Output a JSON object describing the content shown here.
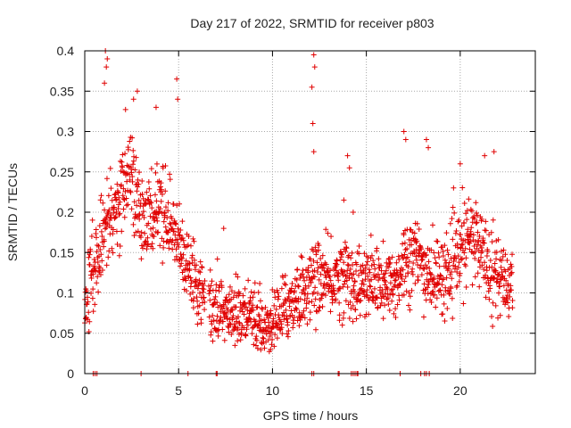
{
  "chart_data": {
    "type": "scatter",
    "title": "Day 217 of 2022, SRMTID for receiver p803",
    "xlabel": "GPS time / hours",
    "ylabel": "SRMTID / TECUs",
    "xlim": [
      0,
      24
    ],
    "ylim": [
      0,
      0.4
    ],
    "xticks": [
      0,
      5,
      10,
      15,
      20
    ],
    "yticks": [
      0,
      0.05,
      0.1,
      0.15,
      0.2,
      0.25,
      0.3,
      0.35,
      0.4
    ],
    "xtick_labels": [
      "0",
      "5",
      "10",
      "15",
      "20"
    ],
    "ytick_labels": [
      "0",
      "0.05",
      "0.1",
      "0.15",
      "0.2",
      "0.25",
      "0.3",
      "0.35",
      "0.4"
    ],
    "grid": true,
    "marker": "+",
    "series": [
      {
        "name": "SRMTID",
        "color": "#e00000",
        "trend": [
          {
            "x": 0.0,
            "y": 0.08
          },
          {
            "x": 0.3,
            "y": 0.12
          },
          {
            "x": 0.6,
            "y": 0.14
          },
          {
            "x": 1.0,
            "y": 0.17
          },
          {
            "x": 1.5,
            "y": 0.2
          },
          {
            "x": 2.0,
            "y": 0.23
          },
          {
            "x": 2.5,
            "y": 0.24
          },
          {
            "x": 3.0,
            "y": 0.2
          },
          {
            "x": 3.5,
            "y": 0.19
          },
          {
            "x": 4.0,
            "y": 0.2
          },
          {
            "x": 4.5,
            "y": 0.19
          },
          {
            "x": 5.0,
            "y": 0.16
          },
          {
            "x": 5.5,
            "y": 0.13
          },
          {
            "x": 6.0,
            "y": 0.11
          },
          {
            "x": 6.5,
            "y": 0.09
          },
          {
            "x": 7.0,
            "y": 0.08
          },
          {
            "x": 8.0,
            "y": 0.075
          },
          {
            "x": 9.0,
            "y": 0.065
          },
          {
            "x": 9.5,
            "y": 0.055
          },
          {
            "x": 10.0,
            "y": 0.065
          },
          {
            "x": 10.5,
            "y": 0.075
          },
          {
            "x": 11.0,
            "y": 0.09
          },
          {
            "x": 11.5,
            "y": 0.1
          },
          {
            "x": 12.0,
            "y": 0.11
          },
          {
            "x": 12.5,
            "y": 0.12
          },
          {
            "x": 13.0,
            "y": 0.11
          },
          {
            "x": 13.5,
            "y": 0.12
          },
          {
            "x": 14.0,
            "y": 0.12
          },
          {
            "x": 14.5,
            "y": 0.11
          },
          {
            "x": 15.0,
            "y": 0.11
          },
          {
            "x": 15.5,
            "y": 0.115
          },
          {
            "x": 16.0,
            "y": 0.105
          },
          {
            "x": 16.5,
            "y": 0.11
          },
          {
            "x": 17.0,
            "y": 0.14
          },
          {
            "x": 17.5,
            "y": 0.15
          },
          {
            "x": 18.0,
            "y": 0.13
          },
          {
            "x": 18.5,
            "y": 0.12
          },
          {
            "x": 19.0,
            "y": 0.12
          },
          {
            "x": 19.5,
            "y": 0.13
          },
          {
            "x": 20.0,
            "y": 0.15
          },
          {
            "x": 20.5,
            "y": 0.17
          },
          {
            "x": 21.0,
            "y": 0.16
          },
          {
            "x": 21.5,
            "y": 0.14
          },
          {
            "x": 22.0,
            "y": 0.12
          },
          {
            "x": 22.5,
            "y": 0.11
          },
          {
            "x": 22.8,
            "y": 0.12
          }
        ],
        "noise": 0.035,
        "data_gap": [
          6.4,
          6.6
        ],
        "outliers": [
          {
            "x": 1.1,
            "y": 0.4
          },
          {
            "x": 1.2,
            "y": 0.39
          },
          {
            "x": 1.15,
            "y": 0.38
          },
          {
            "x": 1.05,
            "y": 0.36
          },
          {
            "x": 2.8,
            "y": 0.35
          },
          {
            "x": 2.6,
            "y": 0.34
          },
          {
            "x": 3.8,
            "y": 0.33
          },
          {
            "x": 4.9,
            "y": 0.365
          },
          {
            "x": 4.95,
            "y": 0.34
          },
          {
            "x": 12.2,
            "y": 0.395
          },
          {
            "x": 12.25,
            "y": 0.38
          },
          {
            "x": 12.1,
            "y": 0.355
          },
          {
            "x": 12.15,
            "y": 0.31
          },
          {
            "x": 12.2,
            "y": 0.275
          },
          {
            "x": 14.0,
            "y": 0.27
          },
          {
            "x": 14.1,
            "y": 0.255
          },
          {
            "x": 17.0,
            "y": 0.3
          },
          {
            "x": 17.1,
            "y": 0.29
          },
          {
            "x": 18.2,
            "y": 0.29
          },
          {
            "x": 18.3,
            "y": 0.28
          },
          {
            "x": 21.8,
            "y": 0.275
          },
          {
            "x": 21.3,
            "y": 0.27
          },
          {
            "x": 20.0,
            "y": 0.26
          },
          {
            "x": 7.4,
            "y": 0.18
          },
          {
            "x": 9.9,
            "y": 0.03
          },
          {
            "x": 8.0,
            "y": 0.035
          },
          {
            "x": 13.8,
            "y": 0.215
          },
          {
            "x": 14.3,
            "y": 0.2
          }
        ],
        "zero_values_x": [
          0.45,
          0.55,
          0.65,
          3.0,
          5.5,
          7.0,
          7.05,
          12.1,
          12.2,
          13.5,
          13.55,
          14.2,
          14.3,
          14.4,
          14.5,
          14.55,
          16.8,
          17.9,
          18.1,
          18.2,
          18.35
        ]
      }
    ]
  }
}
